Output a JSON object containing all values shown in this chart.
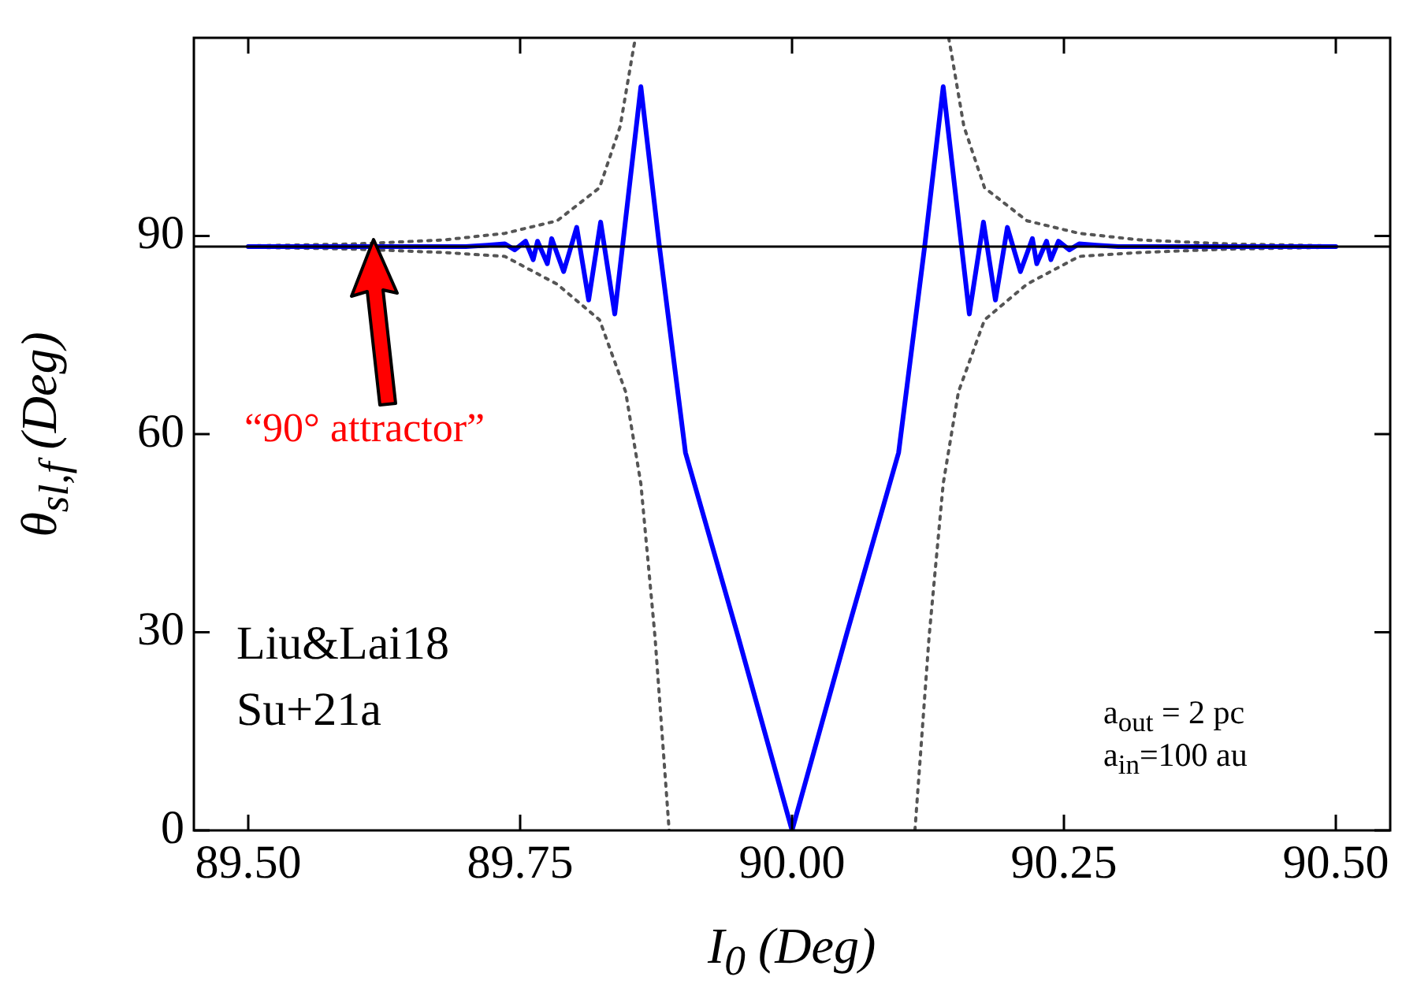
{
  "chart_data": {
    "type": "line",
    "xlabel": "I$_{0}$ (Deg)",
    "ylabel": "θ$_{sl,f}$ (Deg)",
    "xlim": [
      89.45,
      90.55
    ],
    "ylim": [
      0,
      120
    ],
    "xticks": [
      {
        "value": 89.5,
        "label": "89.50"
      },
      {
        "value": 89.75,
        "label": "89.75"
      },
      {
        "value": 90,
        "label": "90.00"
      },
      {
        "value": 90.25,
        "label": "90.25"
      },
      {
        "value": 90.5,
        "label": "90.50"
      }
    ],
    "yticks": [
      0,
      30,
      60,
      90
    ],
    "grid": false,
    "legend": false,
    "marker": "none",
    "series": [
      {
        "color": "#0000ff",
        "line_style": "solid",
        "x": [
          89.5,
          89.7,
          89.72,
          89.736,
          89.745,
          89.755,
          89.762,
          89.766,
          89.775,
          89.779,
          89.79,
          89.802,
          89.813,
          89.824,
          89.837,
          89.861,
          89.878,
          89.902,
          89.95,
          90.0,
          90.05,
          90.098,
          90.122,
          90.139,
          90.163,
          90.176,
          90.187,
          90.198,
          90.21,
          90.221,
          90.225,
          90.234,
          90.238,
          90.245,
          90.255,
          90.264,
          90.28,
          90.3,
          90.5
        ],
        "values": [
          88.4,
          88.4,
          88.6,
          88.8,
          87.9,
          89.2,
          86.4,
          89.2,
          85.8,
          89.6,
          84.6,
          91.3,
          80.3,
          92.1,
          78.2,
          112.6,
          88.5,
          57.2,
          29.6,
          0,
          29.6,
          57.2,
          88.5,
          112.6,
          78.2,
          92.1,
          80.3,
          91.3,
          84.6,
          89.6,
          85.8,
          89.2,
          86.4,
          89.2,
          87.9,
          88.8,
          88.6,
          88.4,
          88.4
        ]
      },
      {
        "color": "#555555",
        "line_style": "dotted",
        "x": [
          89.5,
          89.6,
          89.68,
          89.736,
          89.784,
          89.823,
          89.842,
          89.854,
          89.856
        ],
        "values": [
          88.5,
          88.8,
          89.4,
          90.4,
          92.3,
          97.3,
          106.6,
          118.2,
          120
        ]
      },
      {
        "color": "#555555",
        "line_style": "dotted",
        "x": [
          89.5,
          89.6,
          89.68,
          89.736,
          89.784,
          89.823,
          89.847,
          89.861,
          89.874,
          89.887
        ],
        "values": [
          88.3,
          88.0,
          87.5,
          86.9,
          82.7,
          77.3,
          66.4,
          52.5,
          29.3,
          0
        ]
      },
      {
        "color": "#555555",
        "line_style": "dotted",
        "x": [
          90.144,
          90.146,
          90.158,
          90.177,
          90.216,
          90.264,
          90.32,
          90.4,
          90.5
        ],
        "values": [
          120,
          118.2,
          106.6,
          97.3,
          92.3,
          90.4,
          89.4,
          88.8,
          88.5
        ]
      },
      {
        "color": "#555555",
        "line_style": "dotted",
        "x": [
          90.113,
          90.126,
          90.139,
          90.153,
          90.177,
          90.216,
          90.264,
          90.32,
          90.4,
          90.5
        ],
        "values": [
          0,
          29.3,
          52.5,
          66.4,
          77.3,
          82.7,
          86.9,
          87.5,
          88.0,
          88.3
        ]
      }
    ],
    "ref_lines": [
      {
        "axis": "y",
        "value": 88.4,
        "color": "#000000",
        "line_style": "solid"
      }
    ],
    "annotations": [
      "“90° attractor”",
      "Liu&Lai18",
      "Su+21a",
      "a$_{out}$ = 2 pc",
      "a$_{in}$=100 au"
    ]
  }
}
